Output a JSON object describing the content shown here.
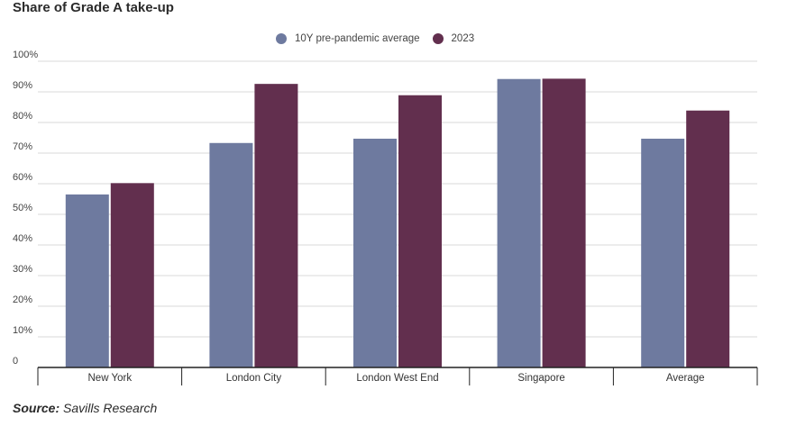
{
  "chart_data": {
    "type": "bar",
    "title": "Share of Grade A take-up",
    "categories": [
      "New York",
      "London City",
      "London West End",
      "Singapore",
      "Average"
    ],
    "series": [
      {
        "name": "10Y pre-pandemic average",
        "color": "#6e7a9f",
        "values": [
          56.5,
          73.3,
          74.7,
          94.2,
          74.7
        ]
      },
      {
        "name": "2023",
        "color": "#622f4e",
        "values": [
          60.2,
          92.6,
          88.9,
          94.3,
          83.9
        ]
      }
    ],
    "ylim": [
      0,
      100
    ],
    "yticks": [
      "0",
      "10%",
      "20%",
      "30%",
      "40%",
      "50%",
      "60%",
      "70%",
      "80%",
      "90%",
      "100%"
    ],
    "ytick_values": [
      0,
      10,
      20,
      30,
      40,
      50,
      60,
      70,
      80,
      90,
      100
    ],
    "xlabel": "",
    "ylabel": "",
    "legend": "top-center"
  },
  "source": {
    "label": "Source:",
    "text": "Savills Research"
  }
}
